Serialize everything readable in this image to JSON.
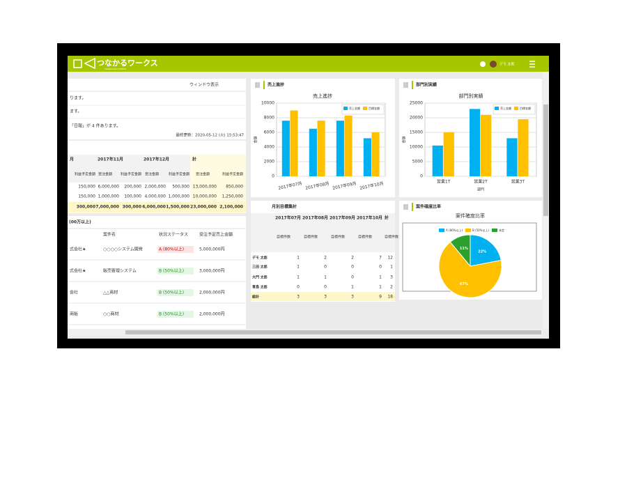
{
  "header": {
    "logo": "つなかるワークス",
    "logo_sub": "TSUNAGARU WORKS",
    "user": "デモ 太郎"
  },
  "notice_panel": {
    "window_button": "ウィンドウ表示",
    "lines": [
      "ります。",
      "ます。",
      "「日報」が 4 件あります。"
    ],
    "updated": "最終更新：2020-05-12 (火) 15:53:47"
  },
  "summary_table": {
    "header": [
      "月",
      "2017年11月",
      "2017年12月",
      "計"
    ],
    "subheader": [
      "利益予定金額",
      "受注金額",
      "利益予定金額",
      "受注金額",
      "利益予定金額",
      "受注金額",
      "利益予定金額"
    ],
    "rows": [
      [
        "150,000",
        "6,000,000",
        "200,000",
        "2,000,000",
        "500,000",
        "13,000,000",
        "850,000"
      ],
      [
        "150,000",
        "1,000,000",
        "100,000",
        "4,000,000",
        "1,000,000",
        "10,000,000",
        "1,250,000"
      ],
      [
        "300,000",
        "7,000,000",
        "300,000",
        "6,000,000",
        "1,500,000",
        "23,000,000",
        "2,100,000"
      ]
    ]
  },
  "deals_panel": {
    "title": "(00万以上)",
    "columns": [
      "案件名",
      "状況ステータス",
      "受注予定売上金額"
    ],
    "rows": [
      [
        "式会社★",
        "○○○○システム開発",
        "A (80%以上)",
        "5,000,000円"
      ],
      [
        "式会社★",
        "販売管理システム",
        "B (50%以上)",
        "3,000,000円"
      ],
      [
        "会社",
        "△△商材",
        "B (50%以上)",
        "2,000,000円"
      ],
      [
        "商販",
        "○○商材",
        "B (50%以上)",
        "2,000,000円"
      ]
    ]
  },
  "monthly_table": {
    "panel_title": "月別目標集計",
    "header": [
      "2017年07月",
      "2017年08月",
      "2017年09月",
      "2017年10月",
      "計"
    ],
    "subheader": [
      "目標件数",
      "目標件数",
      "目標件数",
      "目標件数",
      "目標件数"
    ],
    "rows": [
      {
        "name": "デモ 太郎",
        "values": [
          1,
          2,
          2,
          7,
          12
        ]
      },
      {
        "name": "三田 太郎",
        "values": [
          1,
          0,
          0,
          0,
          1
        ]
      },
      {
        "name": "大門 太郎",
        "values": [
          1,
          1,
          0,
          1,
          3
        ]
      },
      {
        "name": "青島 太郎",
        "values": [
          0,
          0,
          1,
          1,
          2
        ]
      },
      {
        "name": "総計",
        "values": [
          3,
          3,
          3,
          9,
          18
        ]
      }
    ]
  },
  "chart_data": [
    {
      "type": "bar",
      "panel_title": "売上進捗",
      "title": "売上進捗",
      "y_label": "金額",
      "categories": [
        "2017年07月",
        "2017年08月",
        "2017年09月",
        "2017年10月"
      ],
      "series": [
        {
          "name": "売上金額",
          "color": "#00b0f0",
          "values": [
            7600,
            6500,
            7600,
            5200
          ]
        },
        {
          "name": "目標金額",
          "color": "#ffc000",
          "values": [
            9000,
            7600,
            8300,
            6000
          ]
        }
      ],
      "ylim": [
        0,
        10000
      ],
      "yticks": [
        0,
        2000,
        4000,
        6000,
        8000,
        10000
      ],
      "grid": true,
      "legend": "top-right"
    },
    {
      "type": "bar",
      "panel_title": "部門別実績",
      "title": "部門別実績",
      "y_label": "金額",
      "x_label": "部門",
      "categories": [
        "営業1T",
        "営業2T",
        "営業3T"
      ],
      "series": [
        {
          "name": "売上金額",
          "color": "#00b0f0",
          "values": [
            10500,
            23000,
            13000
          ]
        },
        {
          "name": "目標金額",
          "color": "#ffc000",
          "values": [
            15000,
            21000,
            19500
          ]
        }
      ],
      "ylim": [
        0,
        25000
      ],
      "yticks": [
        0,
        5000,
        10000,
        15000,
        20000,
        25000
      ],
      "grid": true,
      "legend": "top-right"
    },
    {
      "type": "pie",
      "panel_title": "案件確度比率",
      "title": "案件確度比率",
      "categories": [
        "A (80%以上)",
        "B (50%以上)",
        "未定"
      ],
      "values": [
        22,
        67,
        11
      ],
      "value_labels": [
        "22%",
        "67%",
        "11%"
      ],
      "colors": [
        "#00b0f0",
        "#ffc000",
        "#2ca02c"
      ]
    }
  ]
}
